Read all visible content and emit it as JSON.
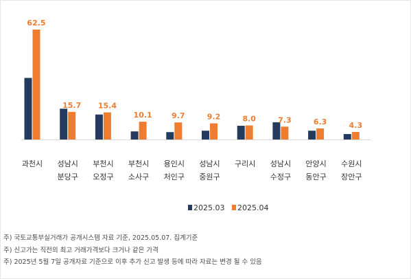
{
  "chart_data": {
    "type": "bar",
    "categories": [
      [
        "과천시",
        ""
      ],
      [
        "성남시",
        "분당구"
      ],
      [
        "부천시",
        "오정구"
      ],
      [
        "부천시",
        "소사구"
      ],
      [
        "용인시",
        "처인구"
      ],
      [
        "성남시",
        "중원구"
      ],
      [
        "구리시",
        ""
      ],
      [
        "성남시",
        "수정구"
      ],
      [
        "안양시",
        "동안구"
      ],
      [
        "수원시",
        "장안구"
      ]
    ],
    "series": [
      {
        "name": "2025.03",
        "color": "#243a5e",
        "values": [
          35.0,
          17.5,
          14.2,
          4.6,
          4.2,
          5.0,
          7.8,
          9.8,
          5.0,
          3.1
        ]
      },
      {
        "name": "2025.04",
        "color": "#ed7d31",
        "values": [
          62.5,
          15.7,
          15.4,
          10.1,
          9.7,
          9.2,
          8.0,
          7.3,
          6.3,
          4.3
        ]
      }
    ],
    "data_labels": [
      "62.5",
      "15.7",
      "15.4",
      "10.1",
      "9.7",
      "9.2",
      "8.0",
      "7.3",
      "6.3",
      "4.3"
    ],
    "ylim": [
      0,
      65
    ],
    "grid": false,
    "legend_position": "bottom",
    "label_color": "#ed7d31"
  },
  "notes": [
    "주) 국토교통부실거래가 공개시스템 자료 기준, 2025.05.07. 집계기준",
    "주) 신고가는 직전의 최고 거래가격보다 크거나 같은 가격",
    "주) 2025년 5월 7일 공개자료 기준으로 이후 추가 신고 발생 등에 따라 자료는 변경 될 수 있음"
  ]
}
